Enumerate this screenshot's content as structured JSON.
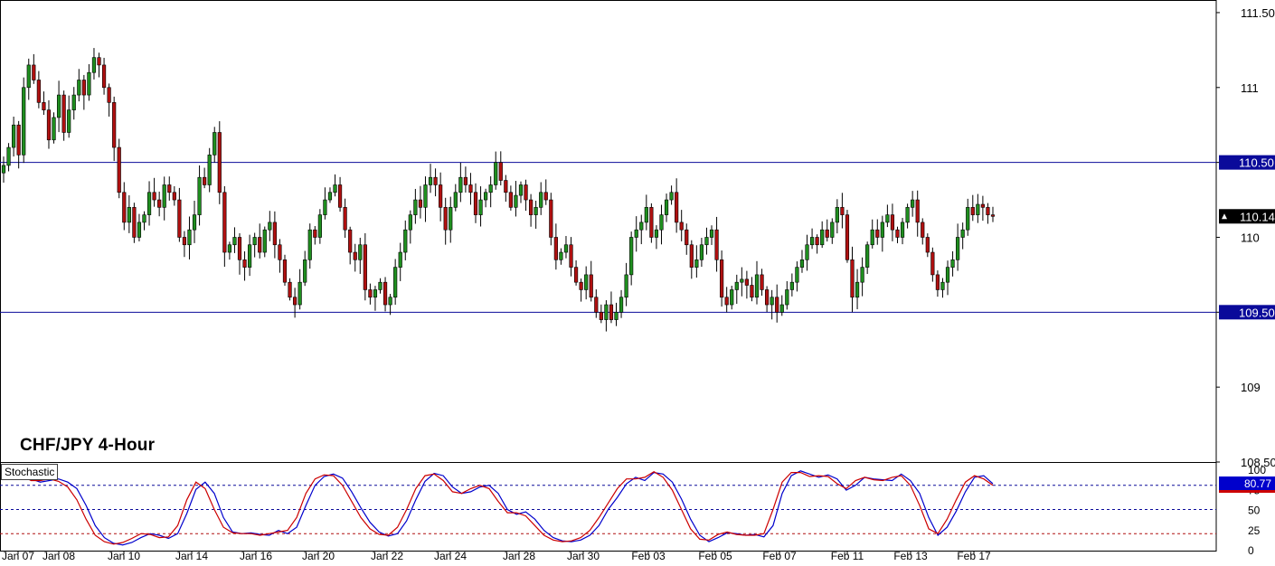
{
  "chart_data": [
    {
      "type": "candlestick",
      "title": "CHF/JPY 4-Hour",
      "ylim": [
        108.5,
        111.56
      ],
      "y_ticks": [
        "111.50",
        "111",
        "110.50",
        "110",
        "109.50",
        "109",
        "108.50"
      ],
      "x_ticks": [
        "Jan 07",
        "Jan 08",
        "Jan 10",
        "Jan 14",
        "Jan 16",
        "Jan 20",
        "Jan 22",
        "Jan 24",
        "Jan 28",
        "Jan 30",
        "Feb 03",
        "Feb 05",
        "Feb 07",
        "Feb 11",
        "Feb 13",
        "Feb 17"
      ],
      "horizontal_levels": [
        {
          "value": 110.5,
          "label": "110.50",
          "color": "#0a0a9a"
        },
        {
          "value": 109.5,
          "label": "109.50",
          "color": "#0a0a9a"
        }
      ],
      "last_price": {
        "value": 110.14,
        "label": "110.14"
      },
      "up_color": "#1f8f1f",
      "down_color": "#b01010",
      "series_close": [
        110.48,
        110.6,
        110.75,
        110.55,
        111.0,
        111.15,
        111.05,
        110.9,
        110.85,
        110.65,
        110.8,
        110.95,
        110.7,
        110.85,
        110.95,
        111.05,
        110.95,
        111.1,
        111.2,
        111.15,
        111.0,
        110.9,
        110.6,
        110.3,
        110.1,
        110.2,
        110.0,
        110.1,
        110.15,
        110.3,
        110.25,
        110.2,
        110.35,
        110.3,
        110.25,
        110.0,
        109.95,
        110.05,
        110.15,
        110.4,
        110.35,
        110.55,
        110.7,
        110.3,
        109.9,
        109.95,
        110.0,
        109.85,
        109.8,
        109.95,
        110.0,
        109.9,
        110.05,
        110.1,
        109.95,
        109.85,
        109.7,
        109.6,
        109.55,
        109.7,
        109.85,
        110.05,
        110.0,
        110.15,
        110.25,
        110.3,
        110.35,
        110.2,
        110.05,
        109.9,
        109.85,
        109.95,
        109.65,
        109.6,
        109.65,
        109.7,
        109.55,
        109.6,
        109.8,
        109.9,
        110.05,
        110.15,
        110.25,
        110.2,
        110.35,
        110.4,
        110.35,
        110.2,
        110.05,
        110.2,
        110.3,
        110.4,
        110.35,
        110.3,
        110.15,
        110.25,
        110.3,
        110.35,
        110.5,
        110.38,
        110.3,
        110.2,
        110.28,
        110.35,
        110.25,
        110.15,
        110.2,
        110.3,
        110.25,
        110.0,
        109.85,
        109.9,
        109.95,
        109.8,
        109.7,
        109.65,
        109.75,
        109.6,
        109.5,
        109.45,
        109.55,
        109.45,
        109.5,
        109.6,
        109.75,
        110.0,
        110.05,
        110.1,
        110.2,
        110.0,
        110.05,
        110.15,
        110.25,
        110.3,
        110.1,
        110.05,
        109.95,
        109.8,
        109.85,
        109.95,
        110.0,
        110.05,
        109.85,
        109.6,
        109.55,
        109.65,
        109.7,
        109.72,
        109.68,
        109.6,
        109.75,
        109.65,
        109.55,
        109.6,
        109.5,
        109.55,
        109.65,
        109.7,
        109.8,
        109.85,
        109.95,
        110.0,
        109.95,
        110.05,
        110.0,
        110.1,
        110.2,
        110.15,
        109.85,
        109.6,
        109.7,
        109.8,
        109.95,
        110.05,
        110.0,
        110.1,
        110.15,
        110.05,
        110.0,
        110.1,
        110.2,
        110.25,
        110.1,
        110.0,
        109.9,
        109.75,
        109.65,
        109.7,
        109.8,
        109.85,
        110.0,
        110.05,
        110.2,
        110.15,
        110.22,
        110.2,
        110.15,
        110.14
      ]
    },
    {
      "type": "line",
      "title": "Stochastic",
      "ylim": [
        0,
        100
      ],
      "y_ticks": [
        "100",
        "75",
        "50",
        "25",
        "0"
      ],
      "levels": [
        80,
        50,
        20
      ],
      "last_value_label": "80.77",
      "series": [
        {
          "color": "#0000cc",
          "values": [
            93,
            94,
            92,
            88,
            84,
            86,
            88,
            84,
            76,
            55,
            30,
            15,
            8,
            6,
            9,
            15,
            20,
            18,
            14,
            20,
            45,
            75,
            84,
            70,
            40,
            22,
            20,
            21,
            19,
            18,
            24,
            20,
            28,
            55,
            80,
            91,
            94,
            89,
            72,
            52,
            34,
            22,
            17,
            20,
            36,
            62,
            85,
            95,
            92,
            78,
            70,
            72,
            78,
            80,
            70,
            50,
            44,
            47,
            38,
            24,
            15,
            11,
            10,
            12,
            18,
            30,
            50,
            65,
            82,
            90,
            86,
            96,
            94,
            84,
            63,
            38,
            18,
            10,
            15,
            21,
            20,
            18,
            19,
            16,
            30,
            70,
            92,
            98,
            94,
            90,
            93,
            88,
            74,
            80,
            90,
            88,
            87,
            86,
            94,
            86,
            70,
            40,
            18,
            28,
            48,
            72,
            90,
            92,
            82
          ]
        },
        {
          "color": "#cc0000",
          "values": [
            98,
            96,
            92,
            86,
            86,
            88,
            85,
            78,
            62,
            38,
            18,
            10,
            7,
            9,
            14,
            20,
            19,
            15,
            16,
            30,
            62,
            84,
            76,
            50,
            28,
            21,
            20,
            20,
            18,
            20,
            22,
            24,
            40,
            70,
            88,
            93,
            92,
            80,
            60,
            40,
            26,
            19,
            18,
            28,
            50,
            76,
            92,
            94,
            86,
            72,
            70,
            76,
            80,
            76,
            60,
            46,
            46,
            42,
            30,
            18,
            12,
            10,
            11,
            15,
            24,
            40,
            58,
            76,
            88,
            88,
            90,
            97,
            90,
            74,
            50,
            26,
            13,
            12,
            19,
            22,
            19,
            18,
            18,
            20,
            50,
            84,
            96,
            96,
            91,
            92,
            91,
            82,
            76,
            86,
            90,
            87,
            86,
            90,
            92,
            80,
            55,
            26,
            20,
            38,
            62,
            84,
            92,
            88,
            80
          ]
        }
      ]
    }
  ]
}
